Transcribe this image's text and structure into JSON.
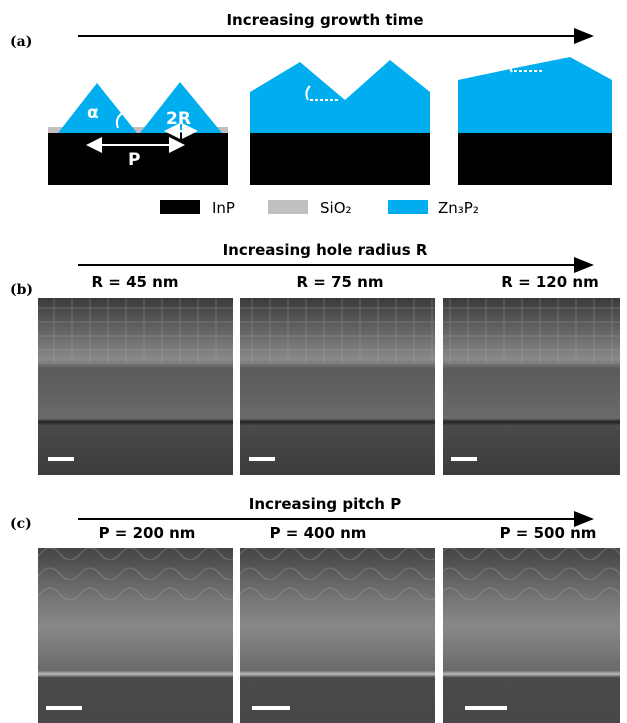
{
  "panel_a": {
    "label": "(a)",
    "arrow_title": "Increasing growth time",
    "angle_label": "α",
    "radius_label": "2R",
    "pitch_label": "P",
    "legend": [
      "InP",
      "SiO₂",
      "Zn₃P₂"
    ]
  },
  "panel_b": {
    "label": "(b)",
    "arrow_title": "Increasing hole radius R",
    "images": [
      "R = 45 nm",
      "R = 75 nm",
      "R = 120 nm"
    ]
  },
  "panel_c": {
    "label": "(c)",
    "arrow_title": "Increasing pitch P",
    "images": [
      "P = 200 nm",
      "P = 400 nm",
      "P = 500 nm"
    ]
  }
}
